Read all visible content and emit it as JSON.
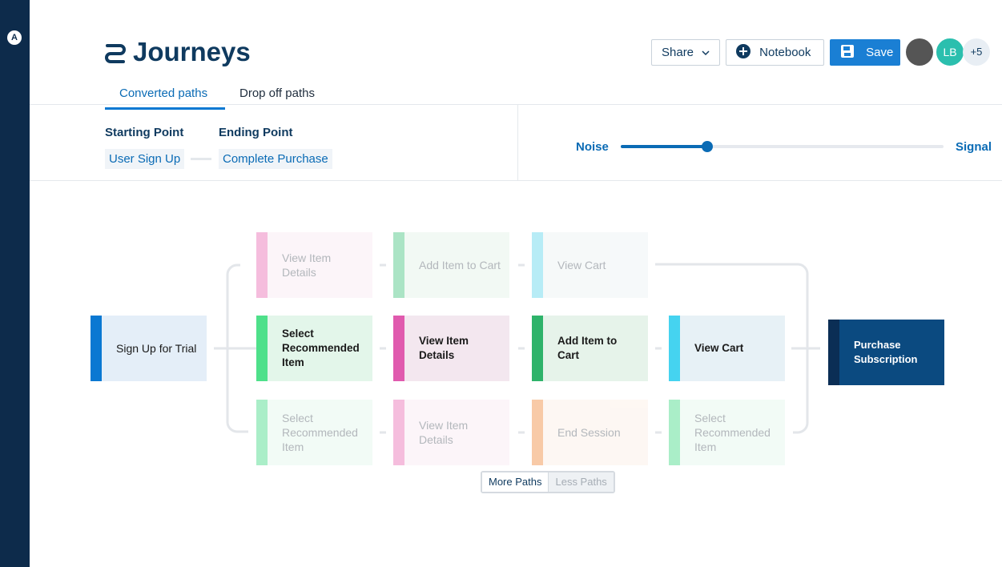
{
  "header": {
    "logo": "A",
    "title": "Journeys",
    "buttons": {
      "share": "Share",
      "notebook": "Notebook",
      "save": "Save"
    },
    "avatars": [
      "LB",
      "+5"
    ]
  },
  "tabs": [
    "Converted paths",
    "Drop off paths"
  ],
  "filters": {
    "starting_label": "Starting Point",
    "ending_label": "Ending Point",
    "starting_value": "User Sign Up",
    "ending_value": "Complete Purchase"
  },
  "slider": {
    "left": "Noise",
    "right": "Signal"
  },
  "flow": {
    "start": "Sign Up for Trial",
    "end": "Purchase Subscription",
    "paths": [
      [
        "View Item Details",
        "Add Item to Cart",
        "View Cart"
      ],
      [
        "Select Recommended Item",
        "View Item Details",
        "Add Item to Cart",
        "View Cart"
      ],
      [
        "Select Recommended Item",
        "View Item Details",
        "End Session",
        "Select Recommended Item"
      ]
    ]
  },
  "controls": {
    "more": "More Paths",
    "less": "Less Paths"
  }
}
